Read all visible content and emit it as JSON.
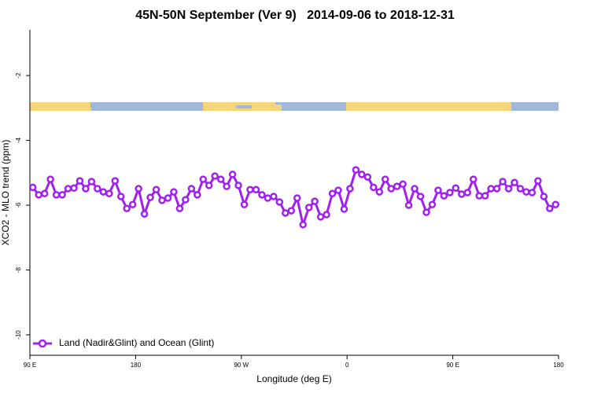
{
  "chart_data": {
    "type": "line",
    "title": "45N-50N September (Ver 9)   2014-09-06 to 2018-12-31",
    "x_label": "Longitude (deg E)",
    "y_label": "XCO2 - MLO trend (ppm)",
    "x": [
      92.5,
      97.5,
      102.5,
      107.5,
      112.5,
      117.5,
      122.5,
      127.5,
      132.5,
      137.5,
      142.5,
      147.5,
      152.5,
      157.5,
      162.5,
      167.5,
      172.5,
      177.5,
      182.5,
      187.5,
      192.5,
      197.5,
      202.5,
      207.5,
      212.5,
      217.5,
      222.5,
      227.5,
      232.5,
      237.5,
      242.5,
      247.5,
      252.5,
      257.5,
      262.5,
      267.5,
      272.5,
      277.5,
      282.5,
      287.5,
      292.5,
      297.5,
      302.5,
      307.5,
      312.5,
      317.5,
      322.5,
      327.5,
      332.5,
      337.5,
      342.5,
      347.5,
      352.5,
      357.5,
      362.5,
      367.5,
      372.5,
      377.5,
      382.5,
      387.5,
      392.5,
      397.5,
      402.5,
      407.5,
      412.5,
      417.5,
      422.5,
      427.5,
      432.5,
      437.5,
      442.5,
      447.5,
      452.5,
      457.5,
      462.5,
      467.5,
      472.5,
      477.5,
      482.5,
      487.5,
      492.5,
      497.5,
      502.5,
      507.5,
      512.5,
      517.5,
      522.5,
      527.5,
      532.5,
      537.5
    ],
    "series": [
      {
        "name": "Land (Nadir&Glint) and Ocean (Glint)",
        "color": "#a020f0",
        "values": [
          -5.45,
          -5.68,
          -5.64,
          -5.2,
          -5.68,
          -5.68,
          -5.49,
          -5.47,
          -5.25,
          -5.49,
          -5.27,
          -5.49,
          -5.59,
          -5.64,
          -5.25,
          -5.73,
          -6.1,
          -5.98,
          -5.49,
          -6.27,
          -5.76,
          -5.52,
          -5.85,
          -5.78,
          -5.59,
          -6.1,
          -5.83,
          -5.49,
          -5.68,
          -5.2,
          -5.39,
          -5.1,
          -5.2,
          -5.42,
          -5.05,
          -5.39,
          -5.98,
          -5.52,
          -5.52,
          -5.68,
          -5.78,
          -5.73,
          -5.9,
          -6.24,
          -6.17,
          -5.78,
          -6.6,
          -6.07,
          -5.88,
          -6.36,
          -6.29,
          -5.64,
          -5.54,
          -6.12,
          -5.49,
          -4.91,
          -5.05,
          -5.13,
          -5.45,
          -5.59,
          -5.2,
          -5.49,
          -5.42,
          -5.35,
          -6.0,
          -5.49,
          -5.73,
          -6.22,
          -5.98,
          -5.54,
          -5.71,
          -5.61,
          -5.47,
          -5.66,
          -5.61,
          -5.2,
          -5.71,
          -5.71,
          -5.49,
          -5.49,
          -5.27,
          -5.49,
          -5.3,
          -5.49,
          -5.59,
          -5.61,
          -5.25,
          -5.73,
          -6.1,
          -5.98
        ]
      }
    ],
    "xlim": [
      90,
      540
    ],
    "xticks": [
      {
        "value": 90,
        "label": "90 E"
      },
      180,
      {
        "value": 270,
        "label": "90 W"
      },
      {
        "value": 360,
        "label": "0"
      },
      {
        "value": 450,
        "label": "90 E"
      },
      {
        "value": 540,
        "label": "180"
      }
    ],
    "ylim": [
      -10.63,
      -0.59
    ],
    "yticks": [
      -2,
      -4,
      -6,
      -8,
      -10
    ],
    "legend": "lower left"
  }
}
